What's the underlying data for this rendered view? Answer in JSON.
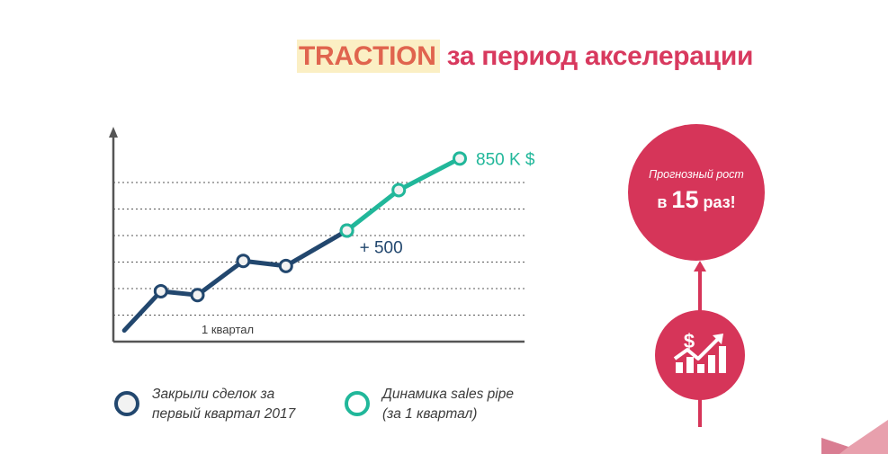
{
  "title": {
    "highlight": "TRACTION",
    "rest": "за период акселерации"
  },
  "chart_data": {
    "type": "line",
    "xlim": [
      0,
      12
    ],
    "ylim": [
      0,
      8
    ],
    "grid": "horizontal-dotted",
    "annotations": {
      "top_label": "850 K $",
      "growth_label": "+ 500",
      "x_label": "1 квартал"
    },
    "series": [
      {
        "name": "Закрыли сделок за первый квартал 2017",
        "color": "#22476e",
        "x": [
          0.3,
          1.5,
          2.7,
          4.2,
          5.6,
          7.6
        ],
        "y": [
          0.3,
          1.85,
          1.7,
          3.05,
          2.85,
          4.25
        ]
      },
      {
        "name": "Динамика sales pipe (за 1 квартал)",
        "color": "#21b79a",
        "x": [
          7.6,
          9.3,
          11.3
        ],
        "y": [
          4.25,
          5.85,
          7.1
        ]
      }
    ]
  },
  "legend": {
    "item1_line1": "Закрыли сделок за",
    "item1_line2": "первый квартал 2017",
    "item2_line1": "Динамика sales pipe",
    "item2_line2": "(за 1 квартал)"
  },
  "forecast": {
    "line1": "Прогнозный рост",
    "prefix": "в",
    "number": "15",
    "suffix": "раз!"
  },
  "icon": "dollar-growth-chart-icon",
  "colors": {
    "accent": "#d63559",
    "title_highlight": "#e0644e",
    "navy": "#22476e",
    "teal": "#21b79a"
  }
}
